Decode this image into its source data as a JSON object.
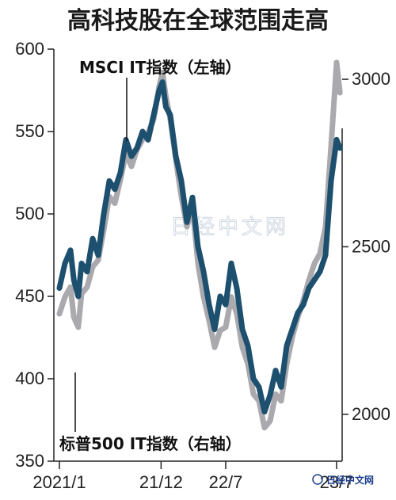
{
  "chart_data": {
    "type": "line",
    "title": "高科技股在全球范围走高",
    "x_tick_labels": [
      "2021/1",
      "21/12",
      "22/7",
      "23/7"
    ],
    "x_ticks": [
      2021.0,
      2021.917,
      2022.5,
      2023.5
    ],
    "xlim": [
      2020.95,
      2023.55
    ],
    "left_axis": {
      "ylim": [
        350,
        600
      ],
      "ticks": [
        350,
        400,
        450,
        500,
        550,
        600
      ]
    },
    "right_axis": {
      "ylim": [
        1860,
        3090
      ],
      "ticks": [
        2000,
        2500,
        3000
      ]
    },
    "series": [
      {
        "name": "MSCI IT指数（左轴）",
        "axis": "left",
        "color": "#1d4f6e",
        "x": [
          2021.0,
          2021.05,
          2021.1,
          2021.13,
          2021.17,
          2021.2,
          2021.25,
          2021.3,
          2021.35,
          2021.4,
          2021.45,
          2021.5,
          2021.55,
          2021.6,
          2021.65,
          2021.7,
          2021.75,
          2021.8,
          2021.85,
          2021.9,
          2021.93,
          2021.96,
          2022.0,
          2022.05,
          2022.1,
          2022.15,
          2022.2,
          2022.25,
          2022.3,
          2022.35,
          2022.4,
          2022.45,
          2022.5,
          2022.55,
          2022.6,
          2022.65,
          2022.7,
          2022.75,
          2022.8,
          2022.85,
          2022.9,
          2022.95,
          2023.0,
          2023.05,
          2023.1,
          2023.15,
          2023.2,
          2023.25,
          2023.3,
          2023.35,
          2023.4,
          2023.45,
          2023.5,
          2023.53
        ],
        "values": [
          455,
          470,
          478,
          460,
          450,
          470,
          465,
          485,
          475,
          500,
          520,
          515,
          525,
          545,
          535,
          540,
          550,
          545,
          560,
          575,
          580,
          565,
          560,
          535,
          520,
          495,
          510,
          480,
          465,
          445,
          430,
          450,
          445,
          470,
          455,
          430,
          420,
          400,
          395,
          380,
          390,
          405,
          395,
          420,
          430,
          440,
          445,
          455,
          460,
          465,
          475,
          520,
          545,
          540
        ]
      },
      {
        "name": "标普500 IT指数（右轴）",
        "axis": "right",
        "color": "#a9a9ae",
        "x": [
          2021.0,
          2021.05,
          2021.1,
          2021.13,
          2021.17,
          2021.2,
          2021.25,
          2021.3,
          2021.35,
          2021.4,
          2021.45,
          2021.5,
          2021.55,
          2021.6,
          2021.65,
          2021.7,
          2021.75,
          2021.8,
          2021.85,
          2021.9,
          2021.93,
          2021.96,
          2022.0,
          2022.05,
          2022.1,
          2022.15,
          2022.2,
          2022.25,
          2022.3,
          2022.35,
          2022.4,
          2022.45,
          2022.5,
          2022.55,
          2022.6,
          2022.65,
          2022.7,
          2022.75,
          2022.8,
          2022.85,
          2022.9,
          2022.95,
          2023.0,
          2023.05,
          2023.1,
          2023.15,
          2023.2,
          2023.25,
          2023.3,
          2023.35,
          2023.4,
          2023.45,
          2023.5,
          2023.53
        ],
        "values": [
          2300,
          2350,
          2380,
          2290,
          2260,
          2360,
          2380,
          2440,
          2460,
          2550,
          2650,
          2630,
          2700,
          2780,
          2740,
          2790,
          2820,
          2840,
          2880,
          2980,
          3020,
          2950,
          2880,
          2760,
          2650,
          2560,
          2620,
          2450,
          2350,
          2280,
          2200,
          2250,
          2260,
          2350,
          2300,
          2200,
          2150,
          2060,
          2040,
          1960,
          1980,
          2060,
          2040,
          2150,
          2230,
          2290,
          2340,
          2400,
          2450,
          2480,
          2560,
          2800,
          3050,
          2960
        ]
      }
    ],
    "annotations": [
      {
        "text": "MSCI IT指数（左轴）"
      },
      {
        "text": "标普500 IT指数（右轴）"
      }
    ],
    "grid": false
  },
  "watermark": "日经中文网",
  "corner_logo": "日经中文网",
  "colors": {
    "axis": "#222222",
    "background": "#ffffff"
  }
}
